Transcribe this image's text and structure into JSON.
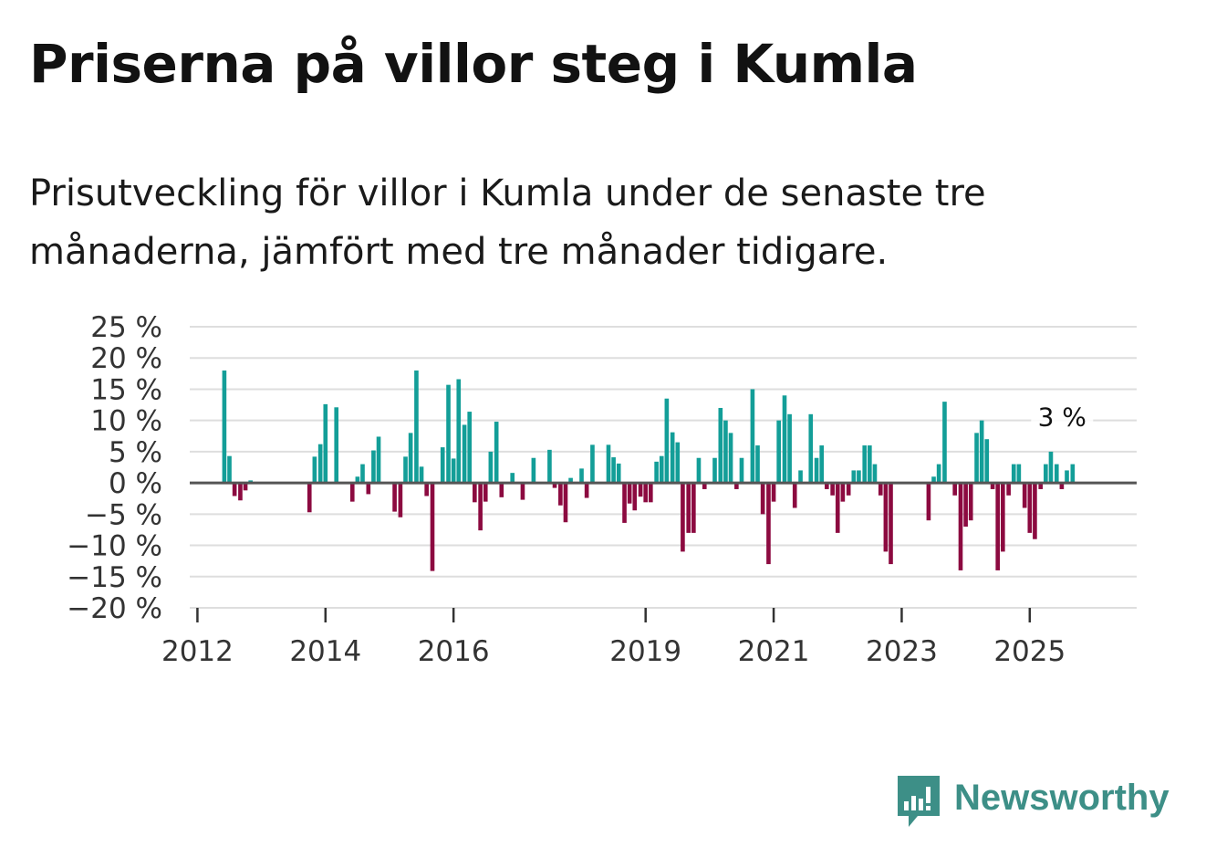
{
  "title": "Priserna på villor steg i Kumla",
  "subtitle": "Prisutveckling för villor i Kumla under de senaste tre månaderna, jämfört med tre månader tidigare.",
  "brand": "Newsworthy",
  "colors": {
    "positive": "#139e98",
    "negative": "#8c0a40",
    "grid": "#dedede",
    "zero_line": "#555555",
    "brand": "#3d8f87"
  },
  "chart_data": {
    "type": "bar",
    "title": "Priserna på villor steg i Kumla",
    "ylim": [
      -20,
      25
    ],
    "yticks": [
      25,
      20,
      15,
      10,
      5,
      0,
      -5,
      -10,
      -15,
      -20
    ],
    "ytick_labels": [
      "25 %",
      "20 %",
      "15 %",
      "10 %",
      "5 %",
      "0 %",
      "−5 %",
      "−10 %",
      "−15 %",
      "−20 %"
    ],
    "x_range": [
      2011.88,
      2026.67
    ],
    "xticks": [
      2012,
      2014,
      2016,
      2019,
      2021,
      2023,
      2025
    ],
    "xtick_labels": [
      "2012",
      "2014",
      "2016",
      "2019",
      "2021",
      "2023",
      "2025"
    ],
    "bar_width_years": 0.066,
    "x": [
      2012.42,
      2012.5,
      2012.58,
      2012.67,
      2012.75,
      2012.83,
      2013.75,
      2013.83,
      2013.92,
      2014.0,
      2014.17,
      2014.42,
      2014.5,
      2014.58,
      2014.67,
      2014.75,
      2014.83,
      2015.08,
      2015.17,
      2015.25,
      2015.33,
      2015.42,
      2015.5,
      2015.58,
      2015.67,
      2015.83,
      2015.92,
      2016.0,
      2016.08,
      2016.17,
      2016.25,
      2016.33,
      2016.42,
      2016.5,
      2016.58,
      2016.67,
      2016.75,
      2016.92,
      2017.08,
      2017.25,
      2017.5,
      2017.58,
      2017.67,
      2017.75,
      2017.83,
      2018.0,
      2018.08,
      2018.17,
      2018.42,
      2018.5,
      2018.58,
      2018.67,
      2018.75,
      2018.83,
      2018.92,
      2019.0,
      2019.08,
      2019.17,
      2019.25,
      2019.33,
      2019.42,
      2019.5,
      2019.58,
      2019.67,
      2019.75,
      2019.83,
      2019.92,
      2020.08,
      2020.17,
      2020.25,
      2020.33,
      2020.42,
      2020.5,
      2020.67,
      2020.75,
      2020.83,
      2020.92,
      2021.0,
      2021.08,
      2021.17,
      2021.25,
      2021.33,
      2021.42,
      2021.58,
      2021.67,
      2021.75,
      2021.83,
      2021.92,
      2022.0,
      2022.08,
      2022.17,
      2022.25,
      2022.33,
      2022.42,
      2022.5,
      2022.58,
      2022.67,
      2022.75,
      2022.83,
      2023.42,
      2023.5,
      2023.58,
      2023.67,
      2023.83,
      2023.92,
      2024.0,
      2024.08,
      2024.17,
      2024.25,
      2024.33,
      2024.42,
      2024.5,
      2024.58,
      2024.67,
      2024.75,
      2024.83,
      2024.92,
      2025.0,
      2025.08,
      2025.17,
      2025.25,
      2025.33,
      2025.42,
      2025.5,
      2025.58,
      2025.67
    ],
    "values": [
      18,
      4.3,
      -2.1,
      -2.8,
      -1.2,
      0.4,
      -4.7,
      4.2,
      6.2,
      12.6,
      12.1,
      -3,
      1,
      3,
      -1.8,
      5.2,
      7.4,
      -4.6,
      -5.5,
      4.2,
      8,
      18,
      2.6,
      -2.1,
      -14.1,
      5.7,
      15.7,
      3.9,
      16.6,
      9.3,
      11.4,
      -3.1,
      -7.6,
      -3,
      5,
      9.8,
      -2.3,
      1.6,
      -2.7,
      4,
      5.3,
      -0.8,
      -3.6,
      -6.3,
      0.8,
      2.3,
      -2.4,
      6.1,
      6.1,
      4.1,
      3.1,
      -6.4,
      -3.3,
      -4.4,
      -2.2,
      -3.1,
      -3.1,
      3.4,
      4.3,
      13.5,
      8.1,
      6.5,
      -11,
      -8,
      -8,
      4,
      -1,
      4,
      12,
      10,
      8,
      -1,
      4,
      15,
      6,
      -5,
      -13,
      -3,
      10,
      14,
      11,
      -4,
      2,
      11,
      4,
      6,
      -1,
      -2,
      -8,
      -3,
      -2,
      2,
      2,
      6,
      6,
      3,
      -2,
      -11,
      -13,
      -6,
      1,
      3,
      13,
      -2,
      -14,
      -7,
      -6,
      8,
      10,
      7,
      -1,
      -14,
      -11,
      -2,
      3,
      3,
      -4,
      -8,
      -9,
      -1,
      3,
      5,
      3,
      -1,
      2,
      3
    ],
    "annotation": {
      "label": "3 %",
      "x": 2025.42,
      "y": 3
    }
  }
}
